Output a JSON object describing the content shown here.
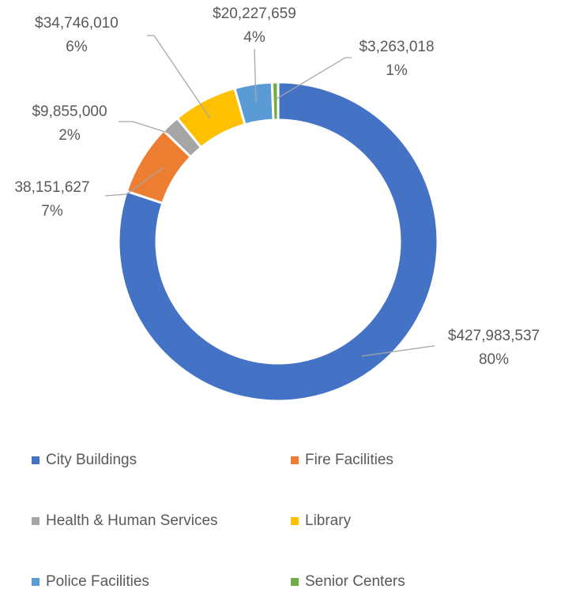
{
  "chart_data": {
    "type": "donut",
    "categories": [
      "City Buildings",
      "Fire Facilities",
      "Health & Human Services",
      "Library",
      "Police Facilities",
      "Senior Centers"
    ],
    "values": [
      427983537,
      38151627,
      9855000,
      34746010,
      20227659,
      3263018
    ],
    "value_labels": [
      "$427,983,537",
      "38,151,627",
      "$9,855,000",
      "$34,746,010",
      "$20,227,659",
      "$3,263,018"
    ],
    "percents": [
      80,
      7,
      2,
      6,
      4,
      1
    ],
    "percent_labels": [
      "80%",
      "7%",
      "2%",
      "6%",
      "4%",
      "1%"
    ],
    "colors": [
      "#4472c4",
      "#ed7d31",
      "#a5a5a5",
      "#ffc000",
      "#5b9bd5",
      "#70ad47"
    ],
    "legend": "bottom"
  }
}
